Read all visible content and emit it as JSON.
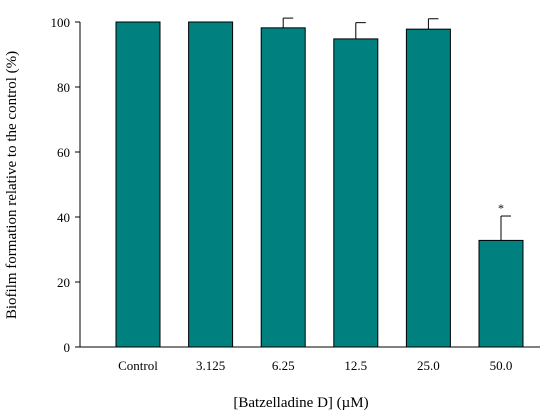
{
  "chart_data": {
    "type": "bar",
    "categories": [
      "Control",
      "3.125",
      "6.25",
      "12.5",
      "25.0",
      "50.0"
    ],
    "values": [
      100,
      100,
      98.2,
      94.8,
      97.8,
      32.8
    ],
    "error_bars": [
      0,
      0,
      3.0,
      5.0,
      3.2,
      7.5
    ],
    "annotations": [
      "",
      "",
      "",
      "",
      "",
      "*"
    ],
    "xlabel": "[Batzelladine D] (µM)",
    "ylabel": "Biofilm formation relative to the control (%)",
    "ylim": [
      0,
      100
    ],
    "yticks": [
      "0",
      "20",
      "40",
      "60",
      "80",
      "100"
    ],
    "grid": false,
    "bar_color": "#00807e",
    "bar_edge_color": "#000000"
  }
}
